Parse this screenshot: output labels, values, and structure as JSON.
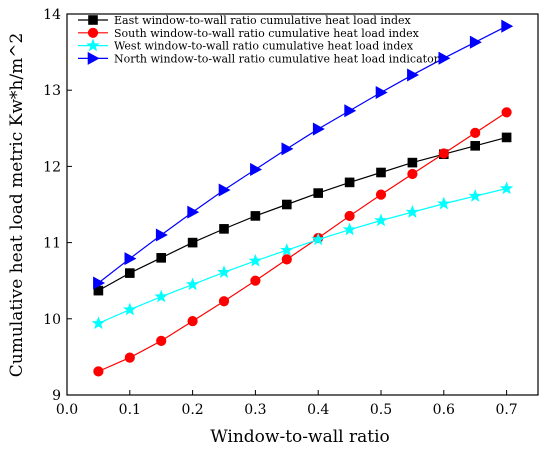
{
  "chart_data": {
    "type": "line",
    "title": "",
    "xlabel": "Window-to-wall ratio",
    "ylabel": "Cumulative heat load metric Kw*h/m^2",
    "xlim": [
      0.0,
      0.75
    ],
    "ylim": [
      9,
      14
    ],
    "xticks": [
      "0.0",
      "0.1",
      "0.2",
      "0.3",
      "0.4",
      "0.5",
      "0.6",
      "0.7"
    ],
    "yticks": [
      "9",
      "10",
      "11",
      "12",
      "13",
      "14"
    ],
    "legend_position": "top-left",
    "grid": false,
    "x": [
      0.05,
      0.1,
      0.15,
      0.2,
      0.25,
      0.3,
      0.35,
      0.4,
      0.45,
      0.5,
      0.55,
      0.6,
      0.65,
      0.7
    ],
    "series": [
      {
        "name": "East window-to-wall ratio cumulative heat load index",
        "color": "#000000",
        "marker": "square",
        "values": [
          10.37,
          10.6,
          10.8,
          11.0,
          11.18,
          11.35,
          11.5,
          11.65,
          11.79,
          11.92,
          12.05,
          12.16,
          12.27,
          12.38
        ]
      },
      {
        "name": "South window-to-wall ratio cumulative heat load index",
        "color": "#ff0000",
        "marker": "circle",
        "values": [
          9.31,
          9.49,
          9.71,
          9.97,
          10.23,
          10.5,
          10.78,
          11.06,
          11.35,
          11.63,
          11.9,
          12.17,
          12.44,
          12.71
        ]
      },
      {
        "name": "West window-to-wall ratio cumulative heat load index",
        "color": "#00ffff",
        "marker": "star",
        "values": [
          9.94,
          10.12,
          10.29,
          10.45,
          10.61,
          10.76,
          10.9,
          11.04,
          11.17,
          11.29,
          11.4,
          11.51,
          11.61,
          11.71
        ]
      },
      {
        "name": "North window-to-wall ratio cumulative heat load indicator",
        "color": "#0000ff",
        "marker": "triangle-right",
        "values": [
          10.47,
          10.79,
          11.1,
          11.4,
          11.69,
          11.96,
          12.23,
          12.49,
          12.73,
          12.97,
          13.2,
          13.42,
          13.63,
          13.84
        ]
      }
    ]
  }
}
